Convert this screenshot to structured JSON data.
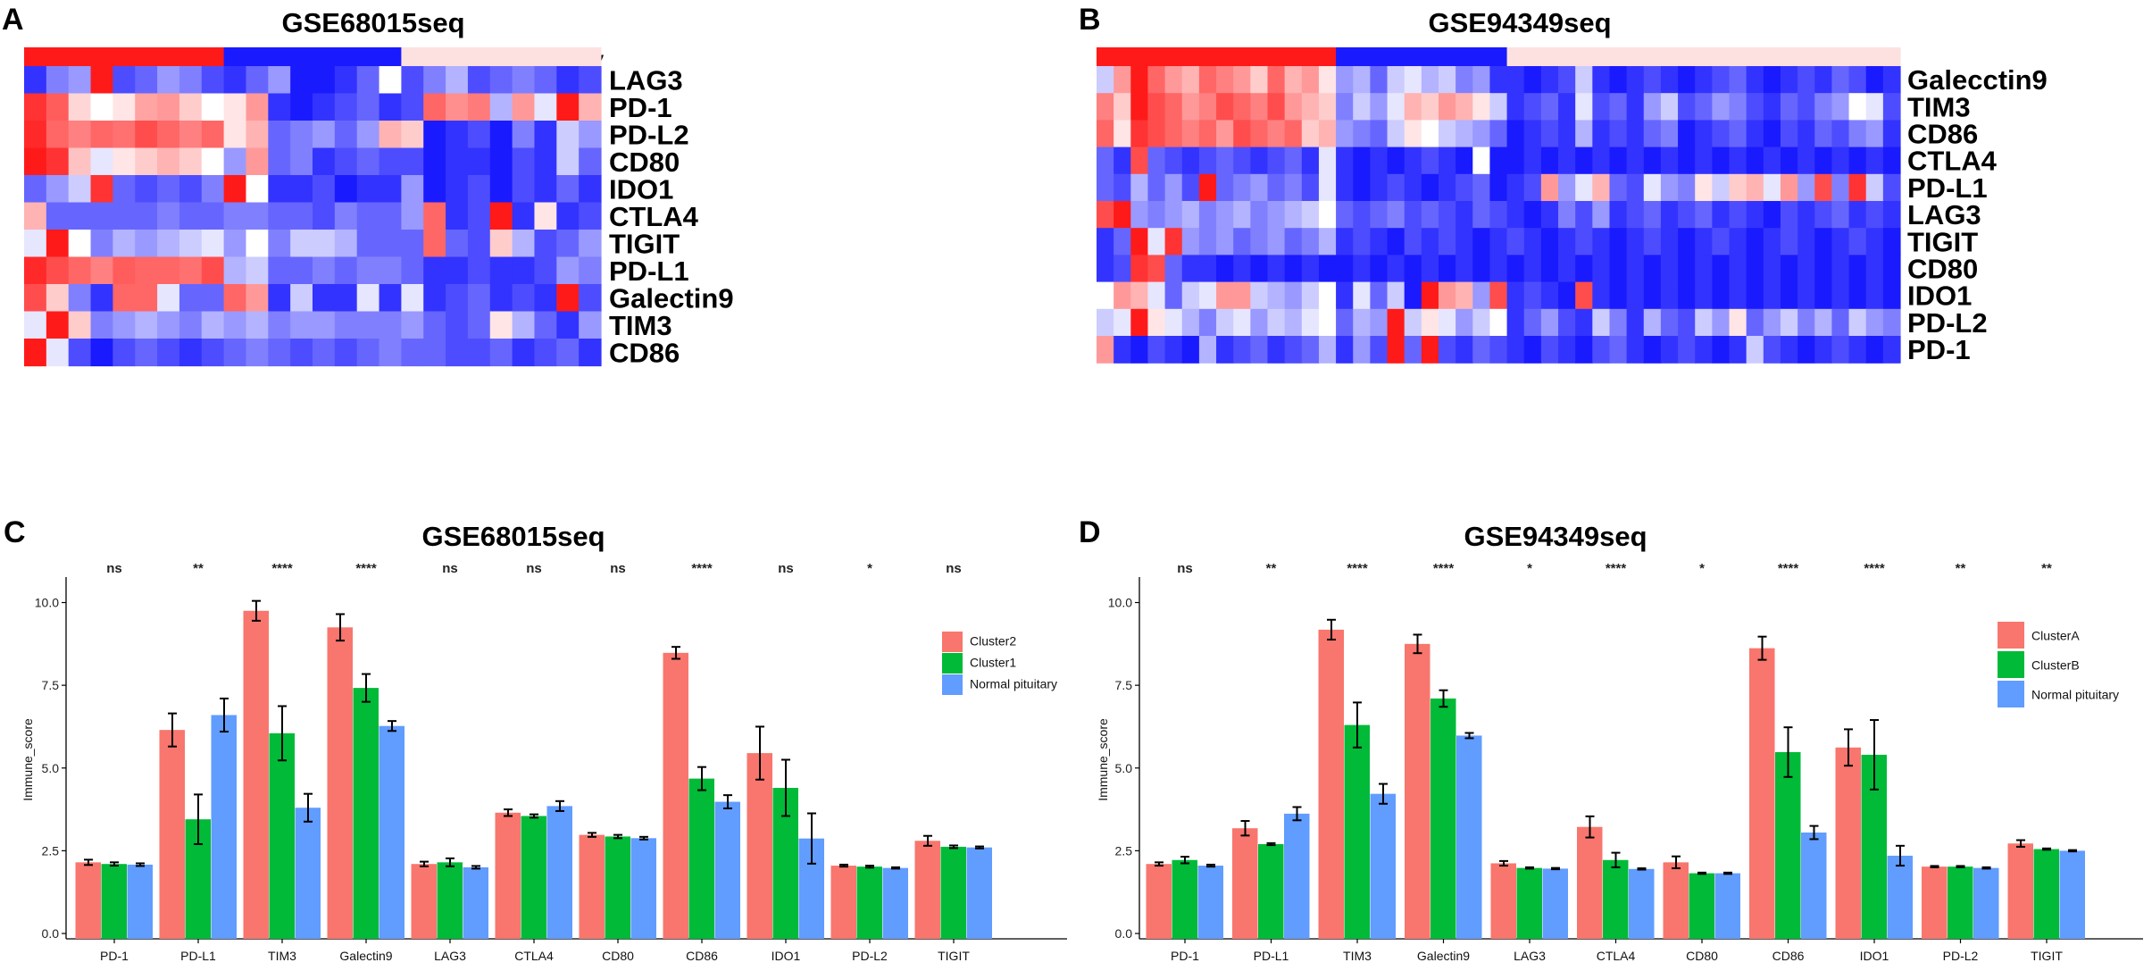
{
  "panels": {
    "A": {
      "letter": "A",
      "title": "GSE68015seq",
      "groups": [
        {
          "label": "Cluster2",
          "color": "#ff1a1a",
          "n": 9
        },
        {
          "label": "Cluster1",
          "color": "#1a1aff",
          "n": 8
        },
        {
          "label": "Normal pituitary",
          "color": "#fde0e0",
          "n": 9
        }
      ],
      "genes": [
        "LAG3",
        "PD-1",
        "PD-L2",
        "CD80",
        "IDO1",
        "CTLA4",
        "TIGIT",
        "PD-L1",
        "Galectin9",
        "TIM3",
        "CD86"
      ],
      "matrix": [
        [
          0.1,
          0.25,
          0.3,
          0.95,
          0.15,
          0.2,
          0.3,
          0.25,
          0.15,
          0.1,
          0.2,
          0.3,
          0.05,
          0.05,
          0.1,
          0.2,
          0.5,
          0.15,
          0.25,
          0.35,
          0.15,
          0.2,
          0.25,
          0.2,
          0.1,
          0.15
        ],
        [
          0.9,
          0.82,
          0.58,
          0.5,
          0.55,
          0.68,
          0.7,
          0.6,
          0.5,
          0.55,
          0.7,
          0.1,
          0.05,
          0.1,
          0.15,
          0.2,
          0.1,
          0.15,
          0.8,
          0.72,
          0.76,
          0.35,
          0.7,
          0.45,
          0.95,
          0.65
        ],
        [
          0.92,
          0.8,
          0.75,
          0.8,
          0.78,
          0.85,
          0.8,
          0.75,
          0.8,
          0.55,
          0.65,
          0.2,
          0.25,
          0.3,
          0.2,
          0.3,
          0.65,
          0.6,
          0.05,
          0.1,
          0.15,
          0.05,
          0.25,
          0.1,
          0.4,
          0.3
        ],
        [
          0.95,
          0.9,
          0.62,
          0.45,
          0.55,
          0.6,
          0.65,
          0.6,
          0.5,
          0.3,
          0.7,
          0.2,
          0.25,
          0.1,
          0.15,
          0.2,
          0.15,
          0.15,
          0.05,
          0.1,
          0.1,
          0.05,
          0.15,
          0.1,
          0.4,
          0.2
        ],
        [
          0.2,
          0.3,
          0.4,
          0.9,
          0.2,
          0.15,
          0.2,
          0.15,
          0.25,
          0.95,
          0.5,
          0.1,
          0.1,
          0.15,
          0.05,
          0.1,
          0.1,
          0.3,
          0.05,
          0.1,
          0.15,
          0.05,
          0.15,
          0.1,
          0.2,
          0.1
        ],
        [
          0.65,
          0.2,
          0.2,
          0.2,
          0.2,
          0.2,
          0.25,
          0.2,
          0.2,
          0.25,
          0.25,
          0.2,
          0.2,
          0.15,
          0.25,
          0.2,
          0.2,
          0.3,
          0.8,
          0.1,
          0.15,
          0.95,
          0.1,
          0.55,
          0.1,
          0.15
        ],
        [
          0.45,
          0.95,
          0.5,
          0.25,
          0.35,
          0.3,
          0.35,
          0.4,
          0.45,
          0.3,
          0.5,
          0.25,
          0.4,
          0.4,
          0.35,
          0.2,
          0.2,
          0.2,
          0.8,
          0.2,
          0.15,
          0.6,
          0.35,
          0.15,
          0.2,
          0.3
        ],
        [
          0.92,
          0.85,
          0.8,
          0.75,
          0.82,
          0.8,
          0.8,
          0.78,
          0.85,
          0.35,
          0.4,
          0.2,
          0.2,
          0.25,
          0.2,
          0.25,
          0.25,
          0.2,
          0.1,
          0.1,
          0.15,
          0.1,
          0.1,
          0.15,
          0.3,
          0.25
        ],
        [
          0.85,
          0.6,
          0.25,
          0.1,
          0.8,
          0.8,
          0.45,
          0.2,
          0.2,
          0.8,
          0.7,
          0.1,
          0.4,
          0.1,
          0.1,
          0.45,
          0.1,
          0.45,
          0.1,
          0.15,
          0.2,
          0.1,
          0.15,
          0.1,
          0.95,
          0.15
        ],
        [
          0.45,
          0.95,
          0.6,
          0.25,
          0.3,
          0.35,
          0.3,
          0.25,
          0.35,
          0.3,
          0.35,
          0.25,
          0.3,
          0.3,
          0.25,
          0.25,
          0.25,
          0.3,
          0.2,
          0.15,
          0.2,
          0.55,
          0.35,
          0.2,
          0.1,
          0.3
        ],
        [
          0.95,
          0.45,
          0.15,
          0.05,
          0.15,
          0.2,
          0.15,
          0.1,
          0.15,
          0.2,
          0.25,
          0.2,
          0.15,
          0.2,
          0.15,
          0.2,
          0.25,
          0.2,
          0.2,
          0.15,
          0.15,
          0.2,
          0.1,
          0.15,
          0.2,
          0.1
        ]
      ]
    },
    "B": {
      "letter": "B",
      "title": "GSE94349seq",
      "groups": [
        {
          "label": "ClusterA",
          "color": "#ff1a1a",
          "n": 14
        },
        {
          "label": "ClusterB",
          "color": "#1a1aff",
          "n": 10
        },
        {
          "label": "Normal pituitary",
          "color": "#fde0e0",
          "n": 23
        }
      ],
      "genes": [
        "Galecctin9",
        "TIM3",
        "CD86",
        "CTLA4",
        "PD-L1",
        "LAG3",
        "TIGIT",
        "CD80",
        "IDO1",
        "PD-L2",
        "PD-1"
      ],
      "matrix": [
        [
          0.4,
          0.7,
          0.95,
          0.8,
          0.7,
          0.65,
          0.8,
          0.75,
          0.7,
          0.6,
          0.8,
          0.65,
          0.7,
          0.55,
          0.3,
          0.35,
          0.2,
          0.4,
          0.45,
          0.35,
          0.4,
          0.25,
          0.3,
          0.1,
          0.1,
          0.05,
          0.1,
          0.15,
          0.4,
          0.1,
          0.05,
          0.1,
          0.15,
          0.1,
          0.05,
          0.1,
          0.15,
          0.2,
          0.1,
          0.05,
          0.1,
          0.15,
          0.1,
          0.2,
          0.15,
          0.05,
          0.1
        ],
        [
          0.75,
          0.6,
          0.95,
          0.85,
          0.8,
          0.7,
          0.75,
          0.85,
          0.8,
          0.75,
          0.85,
          0.7,
          0.65,
          0.6,
          0.25,
          0.4,
          0.3,
          0.45,
          0.65,
          0.6,
          0.7,
          0.65,
          0.55,
          0.4,
          0.1,
          0.15,
          0.2,
          0.1,
          0.45,
          0.15,
          0.2,
          0.1,
          0.3,
          0.4,
          0.15,
          0.2,
          0.3,
          0.25,
          0.15,
          0.1,
          0.2,
          0.15,
          0.25,
          0.3,
          0.5,
          0.45,
          0.15
        ],
        [
          0.8,
          0.55,
          0.9,
          0.85,
          0.8,
          0.75,
          0.8,
          0.7,
          0.85,
          0.8,
          0.75,
          0.8,
          0.6,
          0.65,
          0.3,
          0.25,
          0.2,
          0.4,
          0.55,
          0.5,
          0.4,
          0.35,
          0.3,
          0.2,
          0.05,
          0.1,
          0.15,
          0.1,
          0.35,
          0.1,
          0.15,
          0.1,
          0.2,
          0.25,
          0.05,
          0.1,
          0.15,
          0.2,
          0.1,
          0.05,
          0.15,
          0.1,
          0.2,
          0.15,
          0.25,
          0.3,
          0.1
        ],
        [
          0.2,
          0.1,
          0.85,
          0.2,
          0.15,
          0.1,
          0.15,
          0.2,
          0.15,
          0.1,
          0.15,
          0.2,
          0.1,
          0.45,
          0.1,
          0.05,
          0.1,
          0.05,
          0.1,
          0.15,
          0.1,
          0.05,
          0.5,
          0.05,
          0.05,
          0.1,
          0.05,
          0.1,
          0.05,
          0.1,
          0.05,
          0.1,
          0.05,
          0.1,
          0.05,
          0.1,
          0.05,
          0.1,
          0.05,
          0.1,
          0.05,
          0.1,
          0.05,
          0.1,
          0.05,
          0.1,
          0.05
        ],
        [
          0.2,
          0.15,
          0.35,
          0.2,
          0.3,
          0.15,
          0.95,
          0.2,
          0.25,
          0.3,
          0.2,
          0.25,
          0.15,
          0.45,
          0.1,
          0.05,
          0.1,
          0.15,
          0.1,
          0.05,
          0.1,
          0.15,
          0.2,
          0.05,
          0.1,
          0.15,
          0.7,
          0.3,
          0.45,
          0.65,
          0.2,
          0.15,
          0.45,
          0.3,
          0.25,
          0.55,
          0.4,
          0.6,
          0.65,
          0.45,
          0.7,
          0.3,
          0.85,
          0.25,
          0.9,
          0.4,
          0.15
        ],
        [
          0.85,
          0.95,
          0.3,
          0.25,
          0.3,
          0.35,
          0.25,
          0.3,
          0.35,
          0.25,
          0.3,
          0.35,
          0.4,
          0.5,
          0.2,
          0.15,
          0.2,
          0.25,
          0.15,
          0.2,
          0.15,
          0.1,
          0.2,
          0.15,
          0.1,
          0.05,
          0.1,
          0.25,
          0.15,
          0.3,
          0.1,
          0.15,
          0.2,
          0.1,
          0.15,
          0.2,
          0.1,
          0.15,
          0.1,
          0.05,
          0.15,
          0.1,
          0.15,
          0.2,
          0.1,
          0.15,
          0.1
        ],
        [
          0.1,
          0.2,
          0.95,
          0.45,
          0.9,
          0.3,
          0.25,
          0.3,
          0.2,
          0.25,
          0.3,
          0.2,
          0.25,
          0.35,
          0.1,
          0.15,
          0.1,
          0.05,
          0.15,
          0.1,
          0.15,
          0.1,
          0.05,
          0.1,
          0.15,
          0.1,
          0.05,
          0.1,
          0.15,
          0.1,
          0.05,
          0.1,
          0.15,
          0.1,
          0.05,
          0.1,
          0.15,
          0.1,
          0.05,
          0.1,
          0.15,
          0.1,
          0.05,
          0.1,
          0.15,
          0.1,
          0.05
        ],
        [
          0.1,
          0.15,
          0.9,
          0.85,
          0.2,
          0.1,
          0.1,
          0.05,
          0.1,
          0.05,
          0.1,
          0.05,
          0.1,
          0.05,
          0.05,
          0.1,
          0.05,
          0.1,
          0.05,
          0.1,
          0.05,
          0.1,
          0.05,
          0.1,
          0.05,
          0.1,
          0.05,
          0.1,
          0.05,
          0.1,
          0.05,
          0.1,
          0.05,
          0.1,
          0.05,
          0.1,
          0.05,
          0.1,
          0.05,
          0.1,
          0.05,
          0.1,
          0.05,
          0.1,
          0.05,
          0.1,
          0.05
        ],
        [
          0.5,
          0.7,
          0.65,
          0.45,
          0.2,
          0.4,
          0.45,
          0.7,
          0.7,
          0.4,
          0.35,
          0.3,
          0.4,
          0.5,
          0.1,
          0.45,
          0.2,
          0.4,
          0.05,
          0.95,
          0.7,
          0.65,
          0.3,
          0.85,
          0.1,
          0.15,
          0.1,
          0.05,
          0.85,
          0.1,
          0.05,
          0.1,
          0.05,
          0.1,
          0.05,
          0.1,
          0.05,
          0.1,
          0.05,
          0.1,
          0.05,
          0.1,
          0.05,
          0.1,
          0.05,
          0.1,
          0.05
        ],
        [
          0.4,
          0.45,
          0.95,
          0.55,
          0.45,
          0.35,
          0.25,
          0.4,
          0.45,
          0.3,
          0.4,
          0.35,
          0.45,
          0.5,
          0.2,
          0.35,
          0.3,
          0.95,
          0.4,
          0.55,
          0.45,
          0.3,
          0.4,
          0.5,
          0.1,
          0.2,
          0.3,
          0.15,
          0.1,
          0.4,
          0.25,
          0.1,
          0.35,
          0.2,
          0.15,
          0.4,
          0.3,
          0.55,
          0.2,
          0.3,
          0.4,
          0.25,
          0.35,
          0.2,
          0.4,
          0.3,
          0.25
        ],
        [
          0.7,
          0.1,
          0.05,
          0.15,
          0.1,
          0.05,
          0.35,
          0.1,
          0.15,
          0.2,
          0.1,
          0.15,
          0.2,
          0.35,
          0.1,
          0.3,
          0.15,
          0.95,
          0.2,
          0.95,
          0.15,
          0.1,
          0.2,
          0.15,
          0.1,
          0.05,
          0.15,
          0.1,
          0.05,
          0.15,
          0.2,
          0.1,
          0.05,
          0.1,
          0.15,
          0.1,
          0.05,
          0.1,
          0.4,
          0.15,
          0.1,
          0.05,
          0.1,
          0.15,
          0.1,
          0.05,
          0.1
        ]
      ]
    },
    "C": {
      "letter": "C",
      "title": "GSE68015seq"
    },
    "D": {
      "letter": "D",
      "title": "GSE94349seq"
    }
  },
  "chart_data": [
    {
      "type": "bar",
      "panel": "C",
      "title": "GSE68015seq",
      "xlabel": "",
      "ylabel": "Immune_score",
      "ylim": [
        0,
        10.5
      ],
      "yticks": [
        0.0,
        2.5,
        5.0,
        7.5,
        10.0
      ],
      "ytick_labels": [
        "0.0",
        "2.5",
        "5.0",
        "7.5",
        "10.0"
      ],
      "categories": [
        "PD-1",
        "PD-L1",
        "TIM3",
        "Galectin9",
        "LAG3",
        "CTLA4",
        "CD80",
        "CD86",
        "IDO1",
        "PD-L2",
        "TIGIT"
      ],
      "significance": [
        "ns",
        "**",
        "****",
        "****",
        "ns",
        "ns",
        "ns",
        "****",
        "ns",
        "*",
        "ns"
      ],
      "series": [
        {
          "name": "Cluster2",
          "color": "#f8766d",
          "values": [
            2.15,
            6.15,
            9.75,
            9.25,
            2.1,
            3.65,
            2.98,
            8.48,
            5.45,
            2.05,
            2.8
          ],
          "errors": [
            0.08,
            0.5,
            0.3,
            0.4,
            0.07,
            0.1,
            0.06,
            0.18,
            0.8,
            0.03,
            0.15
          ]
        },
        {
          "name": "Cluster1",
          "color": "#00ba38",
          "values": [
            2.1,
            3.45,
            6.05,
            7.42,
            2.15,
            3.55,
            2.93,
            4.68,
            4.4,
            2.02,
            2.62
          ],
          "errors": [
            0.05,
            0.75,
            0.82,
            0.42,
            0.12,
            0.05,
            0.05,
            0.35,
            0.85,
            0.03,
            0.04
          ]
        },
        {
          "name": "Normal pituitary",
          "color": "#619cff",
          "values": [
            2.08,
            6.6,
            3.8,
            6.27,
            2.0,
            3.85,
            2.88,
            3.98,
            2.87,
            1.98,
            2.6
          ],
          "errors": [
            0.04,
            0.5,
            0.42,
            0.15,
            0.04,
            0.15,
            0.04,
            0.2,
            0.76,
            0.02,
            0.03
          ]
        }
      ]
    },
    {
      "type": "bar",
      "panel": "D",
      "title": "GSE94349seq",
      "xlabel": "",
      "ylabel": "Immune_score",
      "ylim": [
        0,
        10.5
      ],
      "yticks": [
        0.0,
        2.5,
        5.0,
        7.5,
        10.0
      ],
      "ytick_labels": [
        "0.0",
        "2.5",
        "5.0",
        "7.5",
        "10.0"
      ],
      "categories": [
        "PD-1",
        "PD-L1",
        "TIM3",
        "Galectin9",
        "LAG3",
        "CTLA4",
        "CD80",
        "CD86",
        "IDO1",
        "PD-L2",
        "TIGIT"
      ],
      "significance": [
        "ns",
        "**",
        "****",
        "****",
        "*",
        "****",
        "*",
        "****",
        "****",
        "**",
        "**"
      ],
      "series": [
        {
          "name": "ClusterA",
          "color": "#f8766d",
          "values": [
            2.1,
            3.18,
            9.18,
            8.75,
            2.12,
            3.22,
            2.15,
            8.62,
            5.62,
            2.02,
            2.72
          ],
          "errors": [
            0.05,
            0.22,
            0.3,
            0.28,
            0.07,
            0.32,
            0.18,
            0.35,
            0.55,
            0.02,
            0.1
          ]
        },
        {
          "name": "ClusterB",
          "color": "#00ba38",
          "values": [
            2.22,
            2.7,
            6.3,
            7.1,
            1.98,
            2.22,
            1.82,
            5.48,
            5.4,
            2.02,
            2.55
          ],
          "errors": [
            0.1,
            0.03,
            0.68,
            0.25,
            0.02,
            0.22,
            0.02,
            0.75,
            1.05,
            0.02,
            0.02
          ]
        },
        {
          "name": "Normal pituitary",
          "color": "#619cff",
          "values": [
            2.05,
            3.62,
            4.22,
            5.98,
            1.96,
            1.95,
            1.82,
            3.05,
            2.35,
            1.98,
            2.5
          ],
          "errors": [
            0.03,
            0.2,
            0.3,
            0.08,
            0.02,
            0.02,
            0.02,
            0.2,
            0.3,
            0.02,
            0.02
          ]
        }
      ]
    }
  ]
}
